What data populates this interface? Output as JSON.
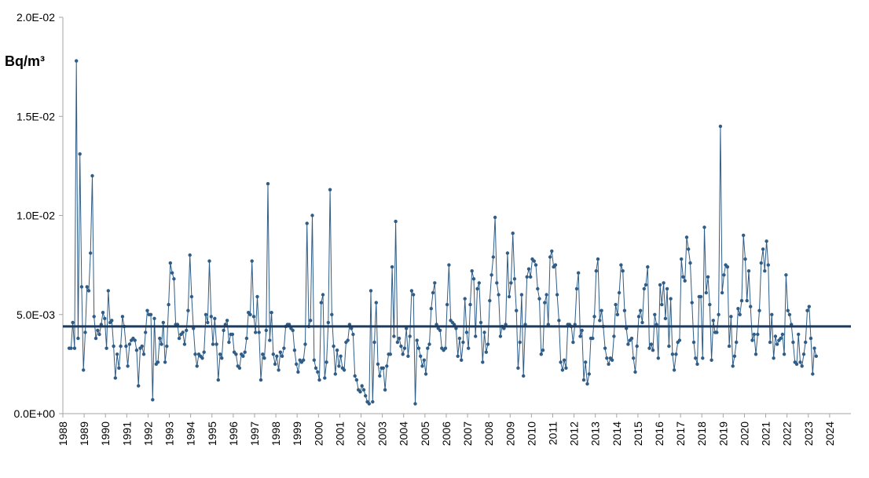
{
  "chart_data": {
    "type": "line",
    "ylabel": "Bq/m³",
    "xlabel": "",
    "title": "",
    "ylim": [
      0,
      0.02
    ],
    "xlim": [
      1988,
      2025
    ],
    "y_ticks": [
      {
        "value": 0,
        "label": "0.0E+00"
      },
      {
        "value": 0.005,
        "label": "5.0E-03"
      },
      {
        "value": 0.01,
        "label": "1.0E-02"
      },
      {
        "value": 0.015,
        "label": "1.5E-02"
      },
      {
        "value": 0.02,
        "label": "2.0E-02"
      }
    ],
    "x_ticks": [
      "1988",
      "1989",
      "1990",
      "1991",
      "1992",
      "1993",
      "1994",
      "1995",
      "1996",
      "1997",
      "1998",
      "1999",
      "2000",
      "2001",
      "2002",
      "2003",
      "2004",
      "2005",
      "2006",
      "2007",
      "2008",
      "2009",
      "2010",
      "2011",
      "2012",
      "2013",
      "2014",
      "2015",
      "2016",
      "2017",
      "2018",
      "2019",
      "2020",
      "2021",
      "2022",
      "2023",
      "2024"
    ],
    "grid": false,
    "legend": "none",
    "reference_line": {
      "value": 0.0044,
      "color": "#1f3a5a"
    },
    "series": [
      {
        "color": "#2f5d87",
        "x_start": 1988.3,
        "x_step": 0.0833,
        "values": [
          0.0033,
          0.0033,
          0.0046,
          0.0033,
          0.0178,
          0.0038,
          0.0131,
          0.0064,
          0.0022,
          0.0041,
          0.0064,
          0.0062,
          0.0081,
          0.012,
          0.0049,
          0.0038,
          0.0042,
          0.004,
          0.0045,
          0.0051,
          0.0048,
          0.0033,
          0.0062,
          0.0046,
          0.0047,
          0.0034,
          0.0018,
          0.003,
          0.0023,
          0.0034,
          0.0049,
          0.0044,
          0.0034,
          0.0024,
          0.0035,
          0.0037,
          0.0038,
          0.0037,
          0.0032,
          0.0014,
          0.0033,
          0.0034,
          0.003,
          0.0041,
          0.0052,
          0.005,
          0.005,
          0.0007,
          0.0048,
          0.0025,
          0.0026,
          0.0038,
          0.0035,
          0.0046,
          0.0026,
          0.0034,
          0.0055,
          0.0076,
          0.0071,
          0.0068,
          0.0045,
          0.0045,
          0.0038,
          0.004,
          0.0041,
          0.0035,
          0.0042,
          0.0052,
          0.008,
          0.0059,
          0.0043,
          0.003,
          0.0024,
          0.003,
          0.0029,
          0.0028,
          0.0031,
          0.005,
          0.0046,
          0.0077,
          0.0049,
          0.0035,
          0.0048,
          0.0035,
          0.0017,
          0.003,
          0.0028,
          0.0042,
          0.0045,
          0.0047,
          0.0036,
          0.004,
          0.004,
          0.0031,
          0.003,
          0.0024,
          0.0023,
          0.003,
          0.0029,
          0.0031,
          0.0038,
          0.0051,
          0.005,
          0.0077,
          0.0049,
          0.0041,
          0.0059,
          0.0041,
          0.0017,
          0.003,
          0.0028,
          0.0042,
          0.0116,
          0.0037,
          0.0051,
          0.003,
          0.0025,
          0.0029,
          0.0022,
          0.0031,
          0.0029,
          0.0033,
          0.0044,
          0.0045,
          0.0045,
          0.0043,
          0.0042,
          0.0032,
          0.0025,
          0.0021,
          0.0027,
          0.0026,
          0.0027,
          0.0035,
          0.0096,
          0.0044,
          0.0047,
          0.01,
          0.0027,
          0.0023,
          0.0021,
          0.0017,
          0.0056,
          0.006,
          0.0018,
          0.0026,
          0.0046,
          0.0113,
          0.005,
          0.0034,
          0.002,
          0.0032,
          0.0024,
          0.0029,
          0.0023,
          0.0022,
          0.0036,
          0.0037,
          0.0045,
          0.0043,
          0.004,
          0.0019,
          0.0017,
          0.0012,
          0.0011,
          0.0014,
          0.0012,
          0.0009,
          0.0006,
          0.0005,
          0.0062,
          0.0006,
          0.0036,
          0.0056,
          0.0025,
          0.0019,
          0.0023,
          0.0023,
          0.0012,
          0.0024,
          0.003,
          0.003,
          0.0074,
          0.0039,
          0.0097,
          0.0036,
          0.0038,
          0.0034,
          0.003,
          0.0033,
          0.0043,
          0.0029,
          0.0039,
          0.0062,
          0.006,
          0.0005,
          0.0037,
          0.0033,
          0.0029,
          0.0024,
          0.0027,
          0.002,
          0.0033,
          0.0035,
          0.0053,
          0.0061,
          0.0066,
          0.0045,
          0.0043,
          0.0042,
          0.0033,
          0.0032,
          0.0033,
          0.0055,
          0.0075,
          0.0047,
          0.0046,
          0.0045,
          0.0043,
          0.0029,
          0.0038,
          0.0027,
          0.0036,
          0.0058,
          0.0041,
          0.0033,
          0.0055,
          0.0072,
          0.0068,
          0.0039,
          0.0063,
          0.0066,
          0.0046,
          0.0026,
          0.0041,
          0.0031,
          0.0035,
          0.0057,
          0.007,
          0.0079,
          0.0099,
          0.0066,
          0.006,
          0.0039,
          0.0044,
          0.0043,
          0.0045,
          0.0081,
          0.0059,
          0.0066,
          0.0091,
          0.0068,
          0.0052,
          0.0023,
          0.0036,
          0.006,
          0.0019,
          0.0045,
          0.0069,
          0.0073,
          0.0069,
          0.0078,
          0.0077,
          0.0075,
          0.0063,
          0.0058,
          0.003,
          0.0032,
          0.0056,
          0.006,
          0.0045,
          0.0079,
          0.0082,
          0.0074,
          0.0075,
          0.006,
          0.0047,
          0.0026,
          0.0022,
          0.0027,
          0.0023,
          0.0045,
          0.0045,
          0.0044,
          0.0036,
          0.0045,
          0.0063,
          0.0071,
          0.0039,
          0.0042,
          0.0017,
          0.0026,
          0.0015,
          0.002,
          0.0038,
          0.0038,
          0.0049,
          0.0072,
          0.0078,
          0.0047,
          0.0052,
          0.0044,
          0.0033,
          0.0028,
          0.0025,
          0.0028,
          0.0027,
          0.0039,
          0.0055,
          0.005,
          0.0061,
          0.0075,
          0.0072,
          0.0052,
          0.0043,
          0.0035,
          0.0037,
          0.0038,
          0.0028,
          0.0021,
          0.0034,
          0.0049,
          0.0052,
          0.0046,
          0.0063,
          0.0065,
          0.0074,
          0.0033,
          0.0035,
          0.0032,
          0.005,
          0.0045,
          0.0028,
          0.0065,
          0.0055,
          0.0066,
          0.0048,
          0.0063,
          0.0034,
          0.0058,
          0.003,
          0.0022,
          0.003,
          0.0036,
          0.0037,
          0.0078,
          0.0069,
          0.0067,
          0.0089,
          0.0083,
          0.0076,
          0.0056,
          0.0036,
          0.0028,
          0.0025,
          0.0059,
          0.0059,
          0.0028,
          0.0094,
          0.0061,
          0.0069,
          0.0055,
          0.0027,
          0.0047,
          0.0041,
          0.0041,
          0.005,
          0.0145,
          0.0061,
          0.007,
          0.0075,
          0.0074,
          0.0034,
          0.0049,
          0.0024,
          0.0029,
          0.0036,
          0.0053,
          0.005,
          0.0057,
          0.009,
          0.0078,
          0.0057,
          0.0072,
          0.0054,
          0.0037,
          0.004,
          0.003,
          0.004,
          0.0052,
          0.0076,
          0.0083,
          0.0072,
          0.0087,
          0.0075,
          0.0036,
          0.005,
          0.0028,
          0.0039,
          0.0035,
          0.0037,
          0.0038,
          0.004,
          0.003,
          0.007,
          0.0052,
          0.005,
          0.0045,
          0.0036,
          0.0026,
          0.0025,
          0.004,
          0.0026,
          0.0024,
          0.003,
          0.0036,
          0.0052,
          0.0054,
          0.0038,
          0.002,
          0.0033,
          0.0029
        ]
      }
    ]
  }
}
